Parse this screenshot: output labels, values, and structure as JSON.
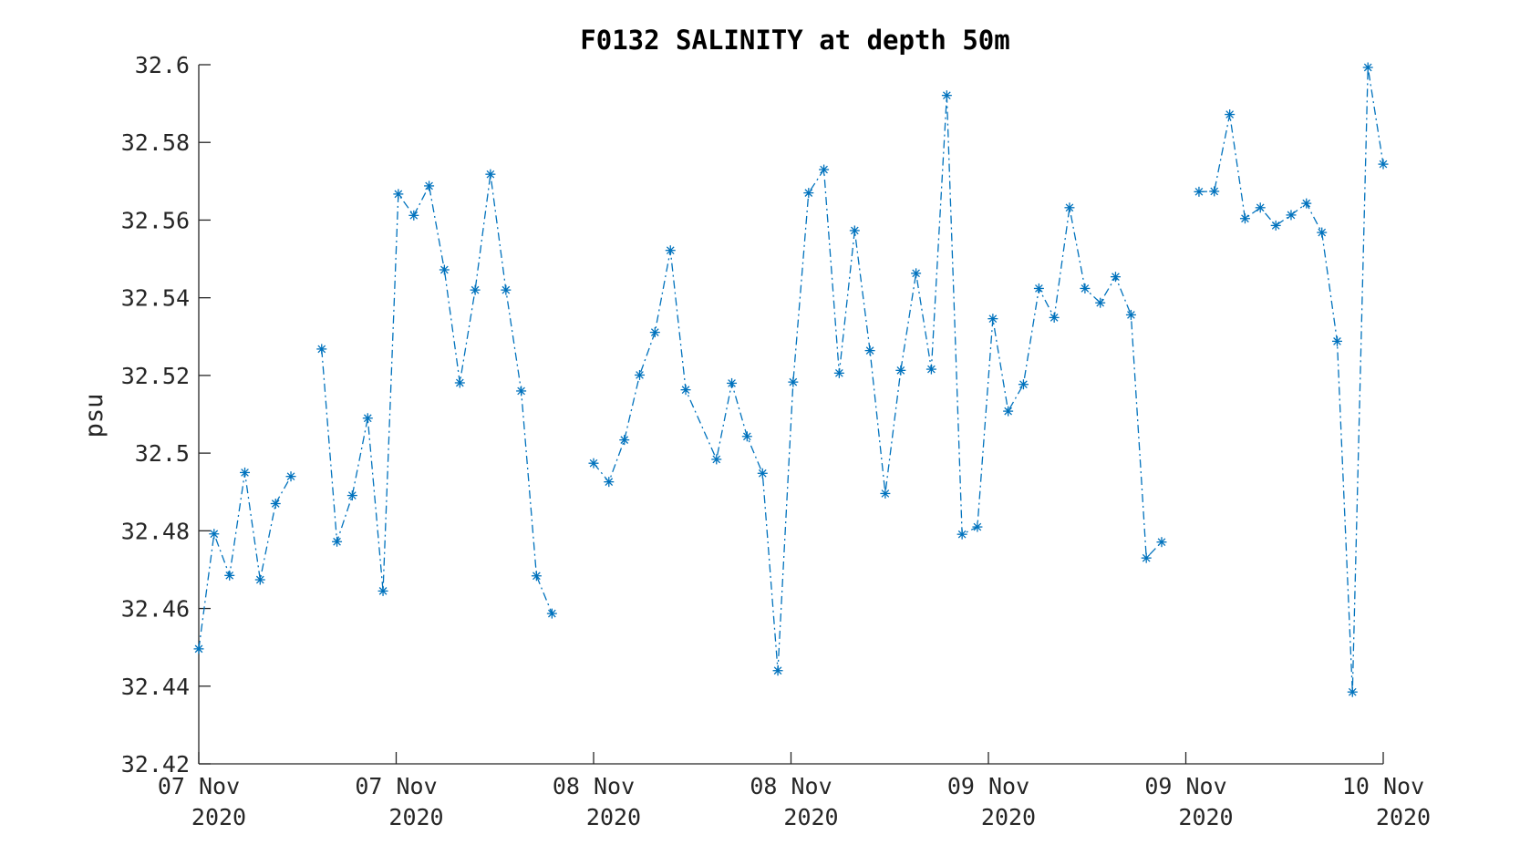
{
  "chart_data": {
    "type": "line",
    "title": "F0132 SALINITY at depth 50m",
    "xlabel": "",
    "ylabel": "psu",
    "ylim": [
      32.42,
      32.6
    ],
    "y_ticks": [
      "32.42",
      "32.44",
      "32.46",
      "32.48",
      "32.5",
      "32.52",
      "32.54",
      "32.56",
      "32.58",
      "32.6"
    ],
    "x_unit": "hours since 07 Nov 2020 00:00",
    "xlim": [
      0,
      72
    ],
    "x_ticks": [
      {
        "x": 0,
        "day": "07 Nov",
        "year": "2020"
      },
      {
        "x": 12,
        "day": "07 Nov",
        "year": "2020"
      },
      {
        "x": 24,
        "day": "08 Nov",
        "year": "2020"
      },
      {
        "x": 36,
        "day": "08 Nov",
        "year": "2020"
      },
      {
        "x": 48,
        "day": "09 Nov",
        "year": "2020"
      },
      {
        "x": 60,
        "day": "09 Nov",
        "year": "2020"
      },
      {
        "x": 72,
        "day": "10 Nov",
        "year": "2020"
      }
    ],
    "grid": false,
    "legend": "none",
    "color": "#0072BD",
    "line_style": "dash-dot",
    "marker": "asterisk",
    "series": [
      {
        "segments": [
          [
            [
              0,
              32.4496
            ],
            [
              0.93,
              32.4792
            ],
            [
              1.87,
              32.4685
            ],
            [
              2.8,
              32.495
            ],
            [
              3.73,
              32.4674
            ],
            [
              4.67,
              32.487
            ],
            [
              5.6,
              32.494
            ]
          ],
          [
            [
              7.47,
              32.5268
            ],
            [
              8.4,
              32.4772
            ],
            [
              9.33,
              32.4891
            ],
            [
              10.27,
              32.509
            ],
            [
              11.2,
              32.4645
            ],
            [
              12.13,
              32.5667
            ],
            [
              13.07,
              32.5612
            ],
            [
              14.0,
              32.5688
            ],
            [
              14.93,
              32.5472
            ],
            [
              15.87,
              32.5181
            ],
            [
              16.8,
              32.542
            ],
            [
              17.73,
              32.5718
            ],
            [
              18.67,
              32.542
            ],
            [
              19.6,
              32.516
            ],
            [
              20.53,
              32.4684
            ],
            [
              21.47,
              32.4587
            ]
          ],
          [
            [
              24.0,
              32.4974
            ],
            [
              24.93,
              32.4926
            ],
            [
              25.87,
              32.5034
            ],
            [
              26.8,
              32.5201
            ],
            [
              27.73,
              32.5311
            ],
            [
              28.67,
              32.5522
            ],
            [
              29.6,
              32.5163
            ],
            [
              31.47,
              32.4984
            ],
            [
              32.4,
              32.518
            ],
            [
              33.33,
              32.5043
            ],
            [
              34.27,
              32.4948
            ],
            [
              35.2,
              32.444
            ],
            [
              36.13,
              32.5183
            ],
            [
              37.07,
              32.567
            ],
            [
              38.0,
              32.573
            ],
            [
              38.93,
              32.5206
            ],
            [
              39.87,
              32.5573
            ],
            [
              40.8,
              32.5264
            ],
            [
              41.73,
              32.4896
            ],
            [
              42.67,
              32.5213
            ],
            [
              43.6,
              32.5463
            ],
            [
              44.53,
              32.5216
            ],
            [
              45.47,
              32.5921
            ],
            [
              46.4,
              32.4791
            ],
            [
              47.33,
              32.481
            ],
            [
              48.27,
              32.5346
            ],
            [
              49.2,
              32.5108
            ],
            [
              50.13,
              32.5177
            ],
            [
              51.07,
              32.5424
            ],
            [
              52.0,
              32.5349
            ],
            [
              52.93,
              32.5632
            ],
            [
              53.87,
              32.5424
            ],
            [
              54.8,
              32.5387
            ],
            [
              55.73,
              32.5454
            ],
            [
              56.67,
              32.5356
            ],
            [
              57.6,
              32.473
            ],
            [
              58.53,
              32.4771
            ]
          ],
          [
            [
              60.8,
              32.5673
            ],
            [
              61.73,
              32.5674
            ],
            [
              62.67,
              32.5872
            ],
            [
              63.6,
              32.5604
            ],
            [
              64.53,
              32.5632
            ],
            [
              65.47,
              32.5586
            ],
            [
              66.4,
              32.5613
            ],
            [
              67.33,
              32.5643
            ],
            [
              68.27,
              32.5568
            ],
            [
              69.2,
              32.5288
            ],
            [
              70.13,
              32.4385
            ],
            [
              71.07,
              32.5993
            ],
            [
              72.0,
              32.5744
            ]
          ]
        ]
      }
    ]
  }
}
